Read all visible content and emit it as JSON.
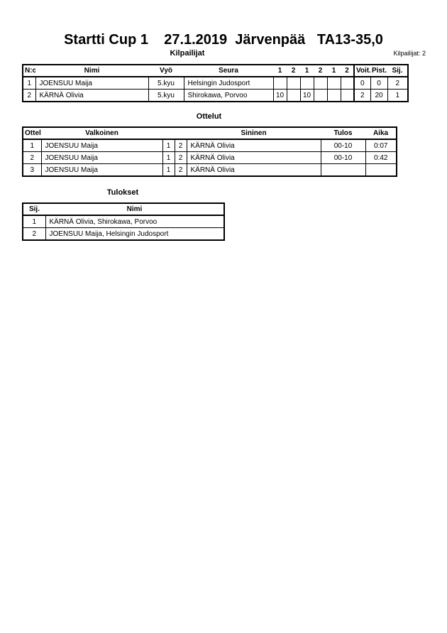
{
  "header": {
    "title": "Startti Cup 1    27.1.2019  Järvenpää   TA13-35,0",
    "count_label": "Kilpailijat: 2"
  },
  "competitors": {
    "title": "Kilpailijat",
    "columns": [
      "N:o",
      "Nimi",
      "Vyö",
      "Seura",
      "1",
      "2",
      "1",
      "2",
      "1",
      "2",
      "Voit.",
      "Pist.",
      "Sij."
    ],
    "rows": [
      [
        "1",
        "JOENSUU Maija",
        "5.kyu",
        "Helsingin Judosport",
        "",
        "",
        "",
        "",
        "",
        "",
        "0",
        "0",
        "2"
      ],
      [
        "2",
        "KÄRNÄ Olivia",
        "5.kyu",
        "Shirokawa, Porvoo",
        "10",
        "",
        "10",
        "",
        "",
        "",
        "2",
        "20",
        "1"
      ]
    ]
  },
  "matches": {
    "title": "Ottelut",
    "columns": [
      "Ottelu",
      "Valkoinen",
      "",
      "",
      "Sininen",
      "Tulos",
      "Aika"
    ],
    "rows": [
      [
        "1",
        "JOENSUU Maija",
        "1",
        "2",
        "KÄRNÄ Olivia",
        "00-10",
        "0:07"
      ],
      [
        "2",
        "JOENSUU Maija",
        "1",
        "2",
        "KÄRNÄ Olivia",
        "00-10",
        "0:42"
      ],
      [
        "3",
        "JOENSUU Maija",
        "1",
        "2",
        "KÄRNÄ Olivia",
        "",
        ""
      ]
    ]
  },
  "results": {
    "title": "Tulokset",
    "columns": [
      "Sij.",
      "Nimi"
    ],
    "rows": [
      [
        "1",
        "KÄRNÄ Olivia, Shirokawa, Porvoo"
      ],
      [
        "2",
        "JOENSUU Maija, Helsingin Judosport"
      ]
    ]
  }
}
